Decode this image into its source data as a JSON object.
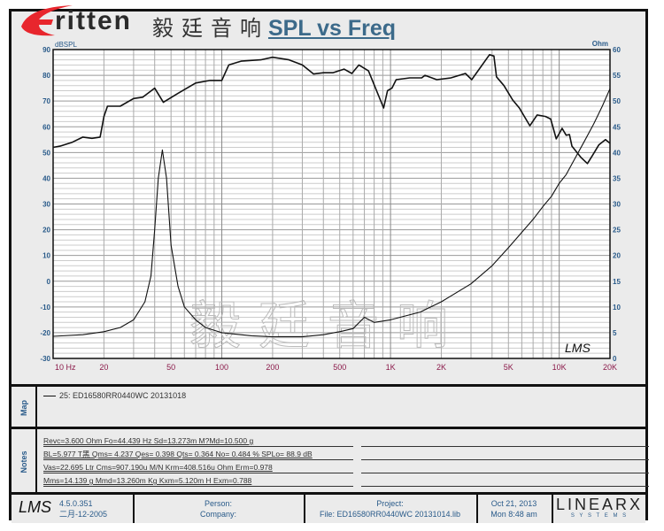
{
  "logo": {
    "brand": "ritten",
    "brand_initial": "E",
    "chinese": "毅廷音响"
  },
  "watermark": "毅廷音响",
  "chart_data": {
    "type": "line",
    "title": "SPL vs Freq",
    "xscale": "log",
    "xlim": [
      10,
      20000
    ],
    "x_ticks": [
      "10 Hz",
      "20",
      "50",
      "100",
      "200",
      "500",
      "1K",
      "2K",
      "5K",
      "10K",
      "20K"
    ],
    "x_tick_values": [
      10,
      20,
      50,
      100,
      200,
      500,
      1000,
      2000,
      5000,
      10000,
      20000
    ],
    "ylabel": "dBSPL",
    "ylim": [
      -30,
      90
    ],
    "y_ticks": [
      90,
      80,
      70,
      60,
      50,
      40,
      30,
      20,
      10,
      0,
      -10,
      -20,
      -30
    ],
    "y2label": "Ohm",
    "y2lim": [
      0,
      60
    ],
    "y2_ticks": [
      60,
      55,
      50,
      45,
      40,
      35,
      30,
      25,
      20,
      15,
      10,
      5,
      0
    ],
    "grid": true,
    "series": [
      {
        "axis": "left",
        "color": "#111111",
        "points": [
          [
            10,
            52
          ],
          [
            11,
            52.5
          ],
          [
            13,
            54
          ],
          [
            15,
            56
          ],
          [
            17,
            55.5
          ],
          [
            19,
            56
          ],
          [
            20,
            64
          ],
          [
            21,
            68
          ],
          [
            25,
            68
          ],
          [
            30,
            71
          ],
          [
            34,
            71.5
          ],
          [
            40,
            75
          ],
          [
            45,
            69.5
          ],
          [
            55,
            73
          ],
          [
            70,
            77
          ],
          [
            85,
            78
          ],
          [
            100,
            78
          ],
          [
            110,
            84
          ],
          [
            130,
            85.5
          ],
          [
            170,
            86
          ],
          [
            200,
            87
          ],
          [
            250,
            86
          ],
          [
            300,
            84
          ],
          [
            350,
            80.5
          ],
          [
            400,
            81
          ],
          [
            455,
            81
          ],
          [
            530,
            82.4
          ],
          [
            590,
            80.7
          ],
          [
            650,
            84
          ],
          [
            740,
            81.7
          ],
          [
            910,
            67.3
          ],
          [
            960,
            74
          ],
          [
            1020,
            75
          ],
          [
            1080,
            78.3
          ],
          [
            1300,
            79
          ],
          [
            1530,
            79
          ],
          [
            1600,
            80
          ],
          [
            1880,
            78.3
          ],
          [
            2280,
            79
          ],
          [
            2780,
            80.7
          ],
          [
            3030,
            78.3
          ],
          [
            3860,
            88
          ],
          [
            4100,
            87.5
          ],
          [
            4250,
            79.4
          ],
          [
            4700,
            76
          ],
          [
            5300,
            70.4
          ],
          [
            5800,
            67.3
          ],
          [
            6700,
            60.4
          ],
          [
            7400,
            64.6
          ],
          [
            8300,
            64
          ],
          [
            8900,
            63
          ],
          [
            9600,
            55.3
          ],
          [
            10400,
            59.4
          ],
          [
            11000,
            56.7
          ],
          [
            11500,
            57
          ],
          [
            11900,
            52.5
          ],
          [
            13500,
            48
          ],
          [
            14700,
            45.7
          ],
          [
            15800,
            49
          ],
          [
            17200,
            53
          ],
          [
            18800,
            55
          ],
          [
            20000,
            53.6
          ]
        ]
      },
      {
        "axis": "right",
        "color": "#111111",
        "points": [
          [
            10,
            4.3
          ],
          [
            15,
            4.6
          ],
          [
            20,
            5.2
          ],
          [
            25,
            6
          ],
          [
            30,
            7.5
          ],
          [
            35,
            11
          ],
          [
            38,
            16
          ],
          [
            40,
            25
          ],
          [
            42,
            35
          ],
          [
            44.4,
            40.5
          ],
          [
            47,
            35
          ],
          [
            50,
            22
          ],
          [
            55,
            14
          ],
          [
            60,
            10
          ],
          [
            70,
            7.5
          ],
          [
            80,
            6
          ],
          [
            100,
            5
          ],
          [
            150,
            4.4
          ],
          [
            200,
            4.2
          ],
          [
            300,
            4.2
          ],
          [
            400,
            4.6
          ],
          [
            500,
            5.2
          ],
          [
            600,
            5.8
          ],
          [
            700,
            8
          ],
          [
            800,
            7
          ],
          [
            1000,
            7.5
          ],
          [
            1500,
            9
          ],
          [
            2000,
            11
          ],
          [
            3000,
            14.5
          ],
          [
            4000,
            18
          ],
          [
            5000,
            21.5
          ],
          [
            6000,
            24.5
          ],
          [
            7000,
            27
          ],
          [
            8000,
            29.5
          ],
          [
            9000,
            31.5
          ],
          [
            10000,
            34
          ],
          [
            11000,
            35.7
          ],
          [
            12000,
            38
          ],
          [
            14000,
            42
          ],
          [
            16000,
            45.5
          ],
          [
            18000,
            49
          ],
          [
            20000,
            52.4
          ]
        ]
      }
    ],
    "annotation": "LMS"
  },
  "map": {
    "label": "Map",
    "entry": "25: ED16580RR0440WC  20131018"
  },
  "notes": {
    "label": "Notes",
    "lines": [
      "Revc=3.600 Ohm  Fo=44.439 Hz  Sd=13.273m M?Md=10.500 g",
      "BL=5.977 T黑  Qms= 4.237  Qes= 0.398  Qts= 0.364  No= 0.484 %  SPLo= 88.9 dB",
      "Vas=22.695 Ltr  Cms=907.190u M/N  Krm=408.516u Ohm  Erm=0.978",
      "Mms=14.139 g  Mmd=13.260m Kg  Kxm=5.120m H  Exm=0.788"
    ]
  },
  "footer": {
    "lms_logo": "LMS",
    "version": "4.5.0.351",
    "build_date": "二月-12-2005",
    "person_label": "Person:",
    "company_label": "Company:",
    "project_label": "Project:",
    "file": "File: ED16580RR0440WC 20131014.lib",
    "date": "Oct 21, 2013",
    "time": "Mon  8:48 am",
    "brand": "LINEARX",
    "brand_sub": "S Y S T E M S"
  }
}
